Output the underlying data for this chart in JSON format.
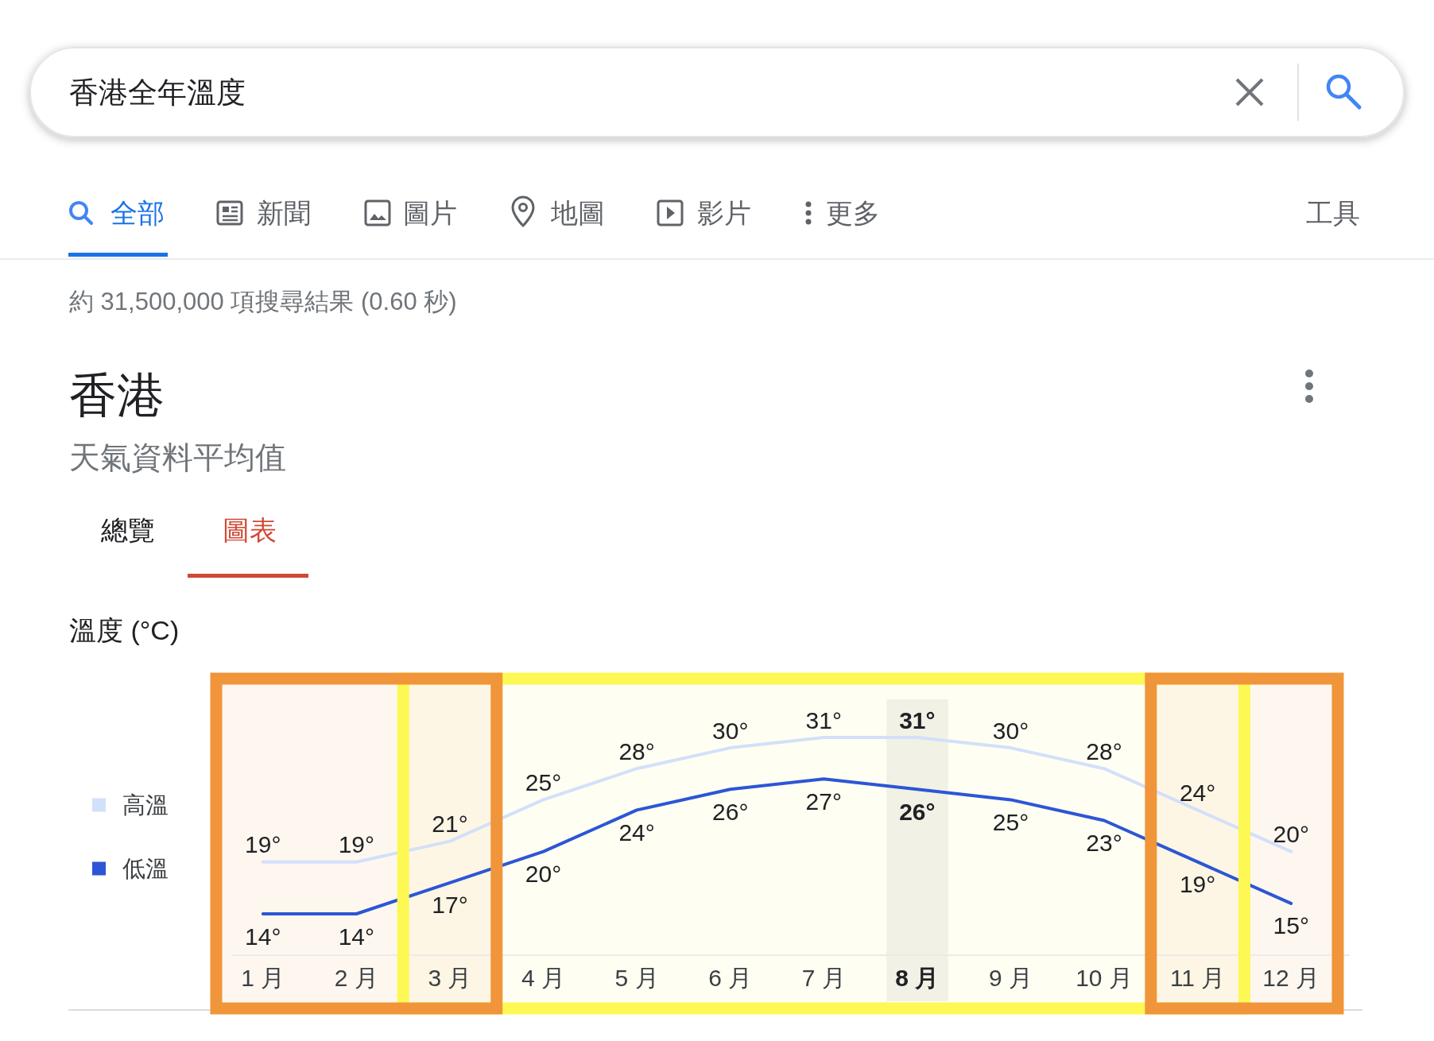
{
  "chart_data": {
    "type": "line",
    "title": "香港",
    "subtitle": "天氣資料平均值",
    "ylabel": "溫度 (°C)",
    "annotations": [
      "香港全年溫度",
      "全部",
      "新聞",
      "圖片",
      "地圖",
      "影片",
      "更多",
      "工具",
      "約 31,500,000 項搜尋結果 (0.60 秒)",
      "總覽",
      "圖表"
    ],
    "categories": [
      "1 月",
      "2 月",
      "3 月",
      "4 月",
      "5 月",
      "6 月",
      "7 月",
      "8 月",
      "9 月",
      "10 月",
      "11 月",
      "12 月"
    ],
    "series": [
      {
        "name": "高溫",
        "color": "#d3e0fa",
        "values": [
          19,
          19,
          21,
          25,
          28,
          30,
          31,
          31,
          30,
          28,
          24,
          20
        ],
        "value_labels": [
          "19°",
          "19°",
          "21°",
          "25°",
          "28°",
          "30°",
          "31°",
          "31°",
          "30°",
          "28°",
          "24°",
          "20°"
        ]
      },
      {
        "name": "低溫",
        "color": "#2c56d5",
        "values": [
          14,
          14,
          17,
          20,
          24,
          26,
          27,
          26,
          25,
          23,
          19,
          15
        ],
        "value_labels": [
          "14°",
          "14°",
          "17°",
          "20°",
          "24°",
          "26°",
          "27°",
          "26°",
          "25°",
          "23°",
          "19°",
          "15°"
        ]
      }
    ],
    "tick_labels": "x",
    "legend": "left",
    "line_style": "solid",
    "bands": [
      {
        "axis": "x",
        "from": "8 月",
        "to": "8 月",
        "color": "#f1f1f1"
      },
      {
        "axis": "x",
        "from": "3 月",
        "to": "11 月",
        "color": "#fdf853"
      },
      {
        "axis": "x",
        "from": "1 月",
        "to": "3 月",
        "color": "#f0953a"
      },
      {
        "axis": "x",
        "from": "11 月",
        "to": "12 月",
        "color": "#f0953a"
      }
    ]
  }
}
